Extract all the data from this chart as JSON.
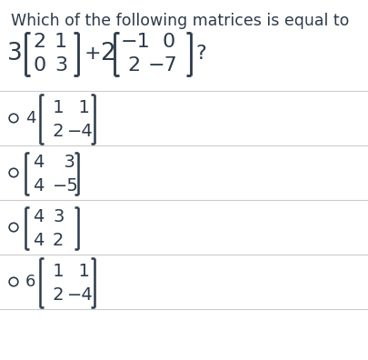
{
  "title": "Which of the following matrices is equal to",
  "bg_color": "#ffffff",
  "text_color": "#2d3a4a",
  "title_fontsize": 12.5,
  "q_fontsize": 16,
  "opt_fontsize": 14,
  "opt_scalar_fontsize": 13,
  "divider_color": "#cccccc",
  "divider_lw": 0.8,
  "circle_r": 0.012,
  "q_scalar_3": "3",
  "q_m1": [
    [
      "2",
      "1"
    ],
    [
      "0",
      "3"
    ]
  ],
  "q_m2": [
    [
      "−1",
      "0"
    ],
    [
      "2",
      "−7"
    ]
  ],
  "q_scalar_2": "2",
  "opts": [
    {
      "scalar": "4",
      "m": [
        [
          " 1",
          "  1"
        ],
        [
          " 2",
          "−4"
        ]
      ],
      "tall": true
    },
    {
      "scalar": "",
      "m": [
        [
          "4",
          "  3"
        ],
        [
          "4",
          "−5"
        ]
      ],
      "tall": false
    },
    {
      "scalar": "",
      "m": [
        [
          "4",
          "3"
        ],
        [
          "4",
          "2"
        ]
      ],
      "tall": false
    },
    {
      "scalar": "6",
      "m": [
        [
          " 1",
          "  1"
        ],
        [
          " 2",
          "−4"
        ]
      ],
      "tall": true
    }
  ]
}
